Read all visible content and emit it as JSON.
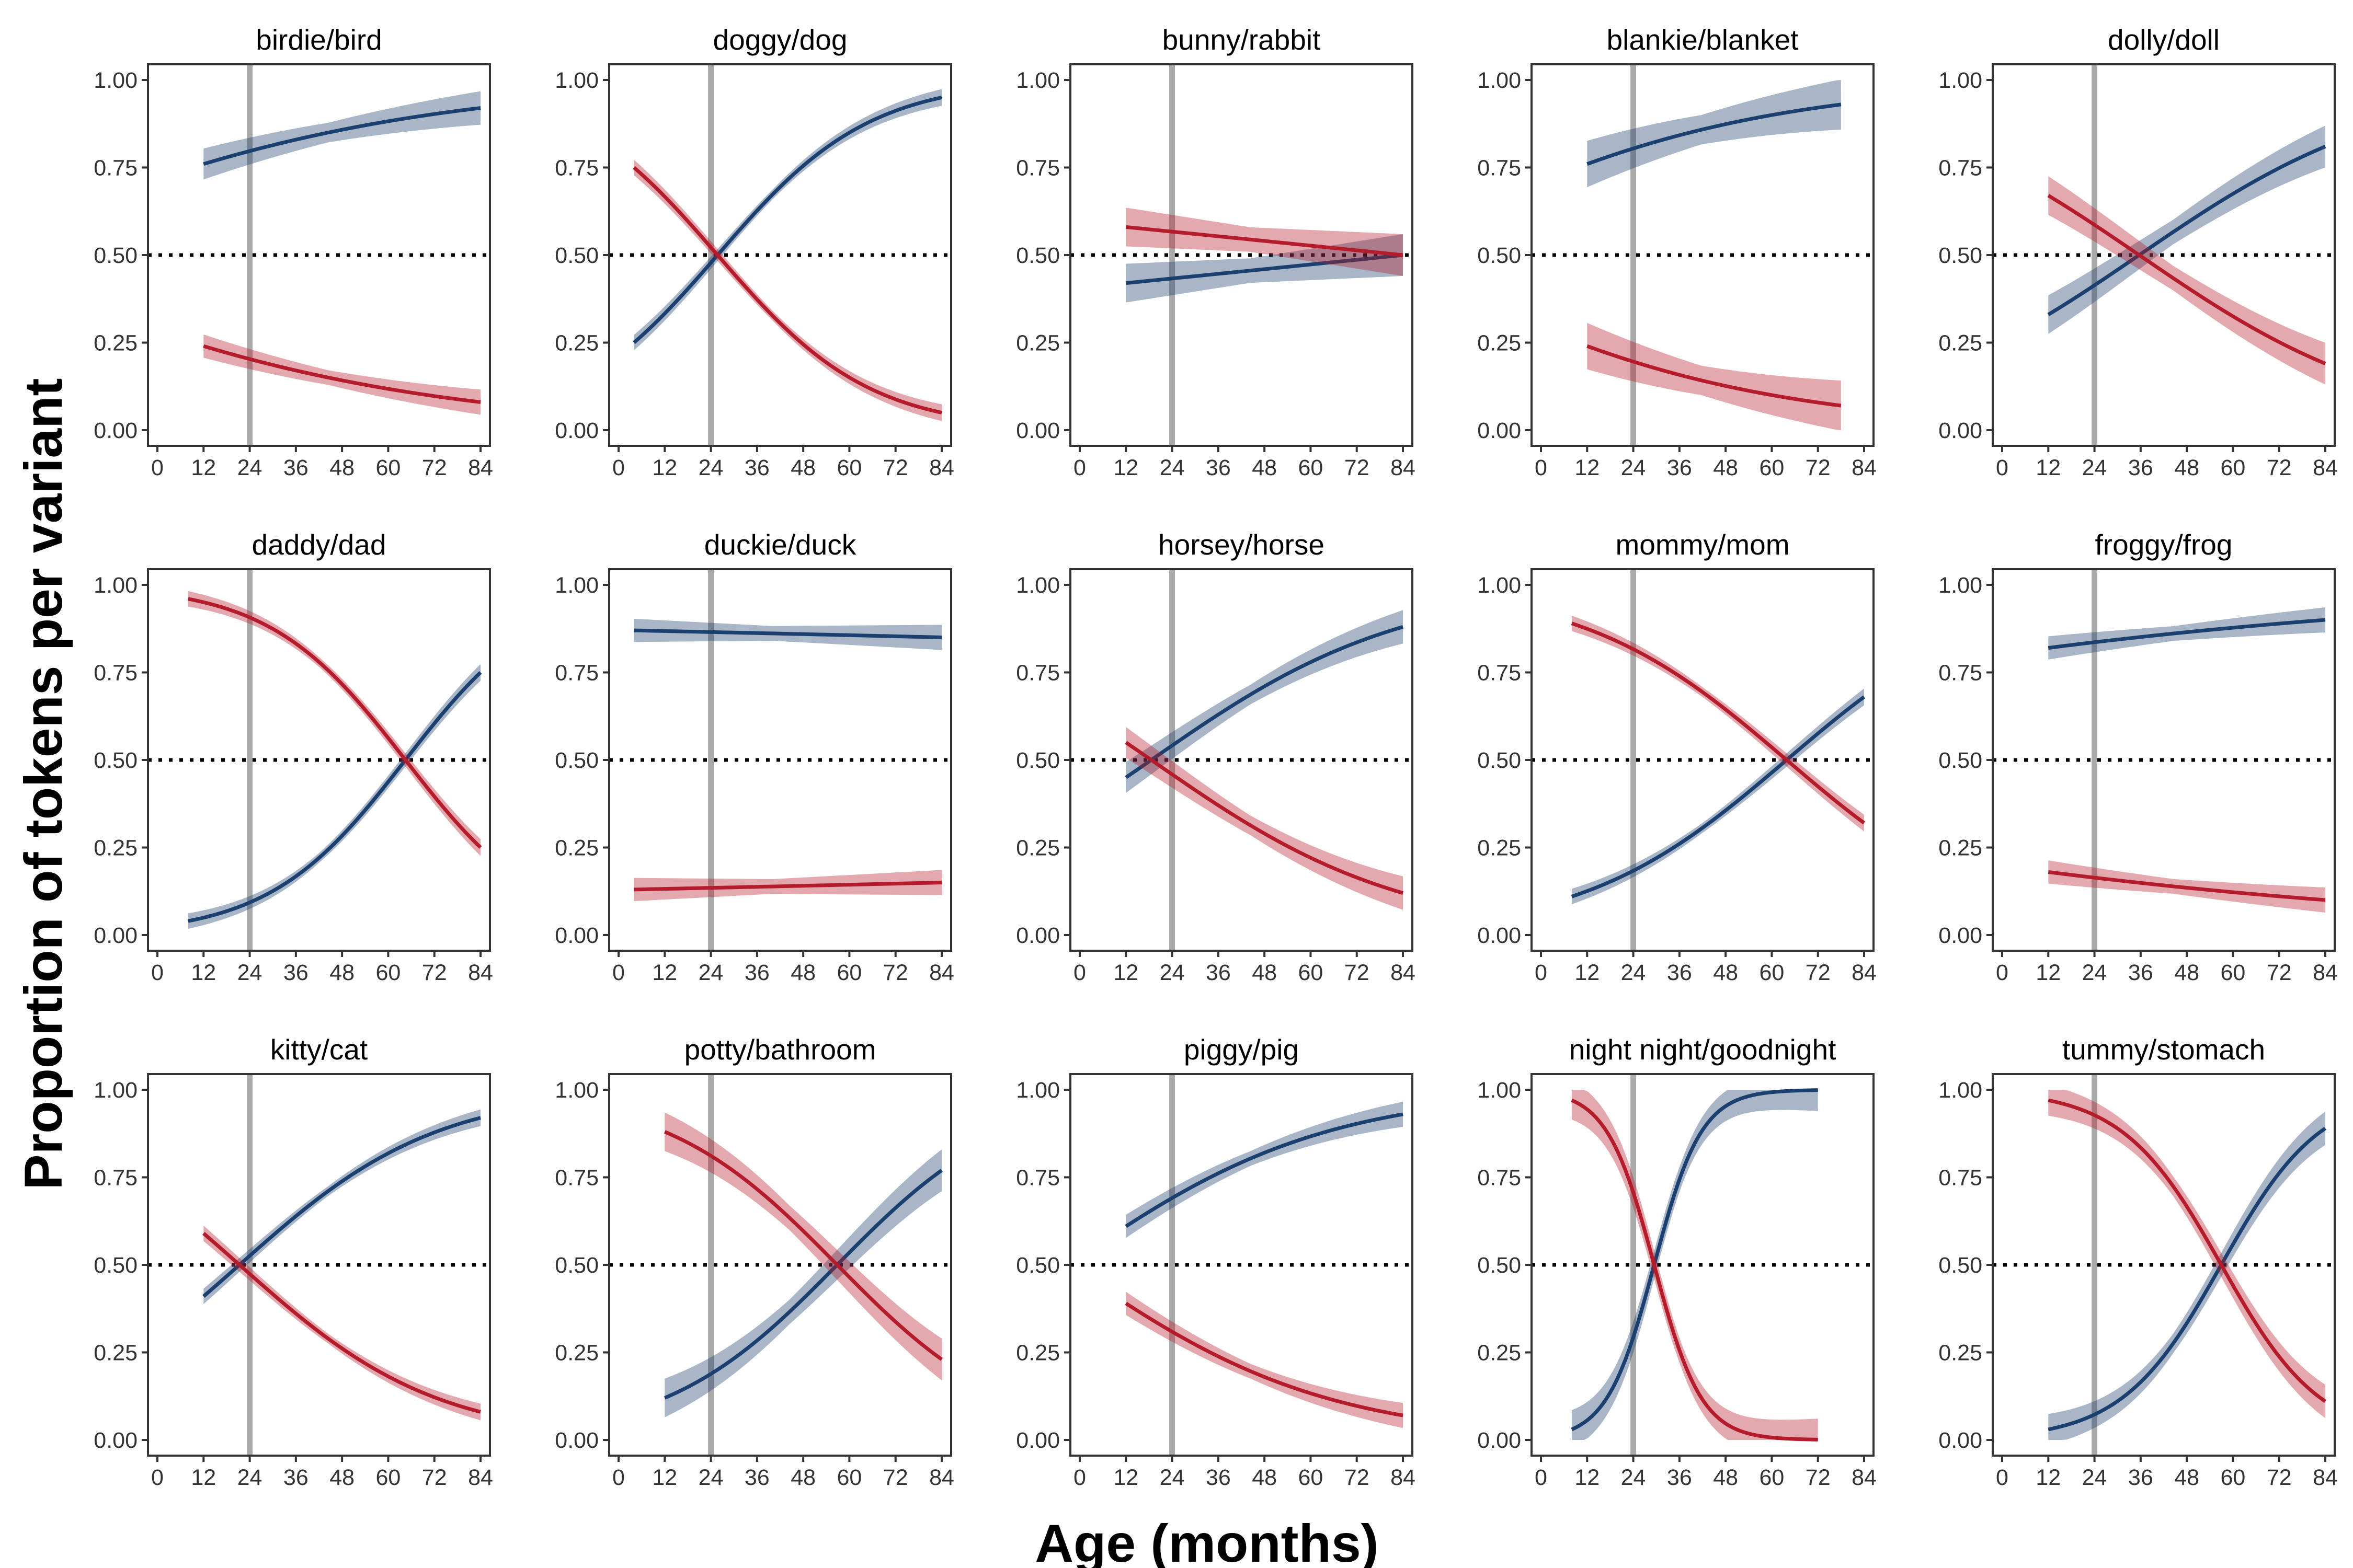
{
  "figure": {
    "ylabel": "Proportion of tokens per variant",
    "xlabel": "Age (months)"
  },
  "colors": {
    "cds_variant": "#b51c2b",
    "ads_variant": "#1b3f6e",
    "ref_line": "#aaaaaa"
  },
  "axis": {
    "x_ticks": [
      "0",
      "12",
      "24",
      "36",
      "48",
      "60",
      "72",
      "84"
    ],
    "y_ticks": [
      "0.00",
      "0.25",
      "0.50",
      "0.75",
      "1.00"
    ]
  },
  "chart_data": [
    {
      "type": "scatter",
      "title": "birdie/bird",
      "xlim": [
        0,
        84
      ],
      "ylim": [
        0,
        1
      ],
      "reference_x": 24,
      "reference_y": 0.5,
      "series": [
        {
          "color": "#1b3f6e",
          "fit_x": [
            12,
            84
          ],
          "fit_y": [
            0.76,
            0.92
          ],
          "band": 0.04
        },
        {
          "color": "#b51c2b",
          "fit_x": [
            12,
            84
          ],
          "fit_y": [
            0.24,
            0.08
          ],
          "band": 0.03
        }
      ]
    },
    {
      "type": "scatter",
      "title": "doggy/dog",
      "xlim": [
        0,
        84
      ],
      "ylim": [
        0,
        1
      ],
      "reference_x": 24,
      "reference_y": 0.5,
      "series": [
        {
          "color": "#1b3f6e",
          "fit_x": [
            4,
            84
          ],
          "fit_y": [
            0.25,
            0.95
          ],
          "band": 0.02
        },
        {
          "color": "#b51c2b",
          "fit_x": [
            4,
            84
          ],
          "fit_y": [
            0.75,
            0.05
          ],
          "band": 0.02
        }
      ]
    },
    {
      "type": "scatter",
      "title": "bunny/rabbit",
      "xlim": [
        0,
        84
      ],
      "ylim": [
        0,
        1
      ],
      "reference_x": 24,
      "reference_y": 0.5,
      "series": [
        {
          "color": "#1b3f6e",
          "fit_x": [
            12,
            84
          ],
          "fit_y": [
            0.42,
            0.5
          ],
          "band": 0.05
        },
        {
          "color": "#b51c2b",
          "fit_x": [
            12,
            84
          ],
          "fit_y": [
            0.58,
            0.5
          ],
          "band": 0.05
        }
      ]
    },
    {
      "type": "scatter",
      "title": "blankie/blanket",
      "xlim": [
        0,
        84
      ],
      "ylim": [
        0,
        1
      ],
      "reference_x": 24,
      "reference_y": 0.5,
      "series": [
        {
          "color": "#1b3f6e",
          "fit_x": [
            12,
            78
          ],
          "fit_y": [
            0.76,
            0.93
          ],
          "band": 0.06
        },
        {
          "color": "#b51c2b",
          "fit_x": [
            12,
            78
          ],
          "fit_y": [
            0.24,
            0.07
          ],
          "band": 0.06
        }
      ]
    },
    {
      "type": "scatter",
      "title": "dolly/doll",
      "xlim": [
        0,
        84
      ],
      "ylim": [
        0,
        1
      ],
      "reference_x": 24,
      "reference_y": 0.5,
      "series": [
        {
          "color": "#1b3f6e",
          "fit_x": [
            12,
            84
          ],
          "fit_y": [
            0.33,
            0.81
          ],
          "band": 0.05
        },
        {
          "color": "#b51c2b",
          "fit_x": [
            12,
            84
          ],
          "fit_y": [
            0.67,
            0.19
          ],
          "band": 0.05
        }
      ]
    },
    {
      "type": "scatter",
      "title": "daddy/dad",
      "xlim": [
        0,
        84
      ],
      "ylim": [
        0,
        1
      ],
      "reference_x": 24,
      "reference_y": 0.5,
      "series": [
        {
          "color": "#1b3f6e",
          "fit_x": [
            8,
            84
          ],
          "fit_y": [
            0.04,
            0.75
          ],
          "band": 0.02
        },
        {
          "color": "#b51c2b",
          "fit_x": [
            8,
            84
          ],
          "fit_y": [
            0.96,
            0.25
          ],
          "band": 0.02
        }
      ]
    },
    {
      "type": "scatter",
      "title": "duckie/duck",
      "xlim": [
        0,
        84
      ],
      "ylim": [
        0,
        1
      ],
      "reference_x": 24,
      "reference_y": 0.5,
      "series": [
        {
          "color": "#1b3f6e",
          "fit_x": [
            4,
            84
          ],
          "fit_y": [
            0.87,
            0.85
          ],
          "band": 0.03
        },
        {
          "color": "#b51c2b",
          "fit_x": [
            4,
            84
          ],
          "fit_y": [
            0.13,
            0.15
          ],
          "band": 0.03
        }
      ]
    },
    {
      "type": "scatter",
      "title": "horsey/horse",
      "xlim": [
        0,
        84
      ],
      "ylim": [
        0,
        1
      ],
      "reference_x": 24,
      "reference_y": 0.5,
      "series": [
        {
          "color": "#1b3f6e",
          "fit_x": [
            12,
            84
          ],
          "fit_y": [
            0.45,
            0.88
          ],
          "band": 0.04
        },
        {
          "color": "#b51c2b",
          "fit_x": [
            12,
            84
          ],
          "fit_y": [
            0.55,
            0.12
          ],
          "band": 0.04
        }
      ]
    },
    {
      "type": "scatter",
      "title": "mommy/mom",
      "xlim": [
        0,
        84
      ],
      "ylim": [
        0,
        1
      ],
      "reference_x": 24,
      "reference_y": 0.5,
      "series": [
        {
          "color": "#1b3f6e",
          "fit_x": [
            8,
            84
          ],
          "fit_y": [
            0.11,
            0.68
          ],
          "band": 0.02
        },
        {
          "color": "#b51c2b",
          "fit_x": [
            8,
            84
          ],
          "fit_y": [
            0.89,
            0.32
          ],
          "band": 0.02
        }
      ]
    },
    {
      "type": "scatter",
      "title": "froggy/frog",
      "xlim": [
        0,
        84
      ],
      "ylim": [
        0,
        1
      ],
      "reference_x": 24,
      "reference_y": 0.5,
      "series": [
        {
          "color": "#1b3f6e",
          "fit_x": [
            12,
            84
          ],
          "fit_y": [
            0.82,
            0.9
          ],
          "band": 0.03
        },
        {
          "color": "#b51c2b",
          "fit_x": [
            12,
            84
          ],
          "fit_y": [
            0.18,
            0.1
          ],
          "band": 0.03
        }
      ]
    },
    {
      "type": "scatter",
      "title": "kitty/cat",
      "xlim": [
        0,
        84
      ],
      "ylim": [
        0,
        1
      ],
      "reference_x": 24,
      "reference_y": 0.5,
      "series": [
        {
          "color": "#1b3f6e",
          "fit_x": [
            12,
            84
          ],
          "fit_y": [
            0.41,
            0.92
          ],
          "band": 0.02
        },
        {
          "color": "#b51c2b",
          "fit_x": [
            12,
            84
          ],
          "fit_y": [
            0.59,
            0.08
          ],
          "band": 0.02
        }
      ]
    },
    {
      "type": "scatter",
      "title": "potty/bathroom",
      "xlim": [
        0,
        84
      ],
      "ylim": [
        0,
        1
      ],
      "reference_x": 24,
      "reference_y": 0.5,
      "series": [
        {
          "color": "#1b3f6e",
          "fit_x": [
            12,
            84
          ],
          "fit_y": [
            0.12,
            0.77
          ],
          "band": 0.05
        },
        {
          "color": "#b51c2b",
          "fit_x": [
            12,
            84
          ],
          "fit_y": [
            0.88,
            0.23
          ],
          "band": 0.05
        }
      ]
    },
    {
      "type": "scatter",
      "title": "piggy/pig",
      "xlim": [
        0,
        84
      ],
      "ylim": [
        0,
        1
      ],
      "reference_x": 24,
      "reference_y": 0.5,
      "series": [
        {
          "color": "#1b3f6e",
          "fit_x": [
            12,
            84
          ],
          "fit_y": [
            0.61,
            0.93
          ],
          "band": 0.03
        },
        {
          "color": "#b51c2b",
          "fit_x": [
            12,
            84
          ],
          "fit_y": [
            0.39,
            0.07
          ],
          "band": 0.03
        }
      ]
    },
    {
      "type": "scatter",
      "title": "night night/goodnight",
      "xlim": [
        0,
        84
      ],
      "ylim": [
        0,
        1
      ],
      "reference_x": 24,
      "reference_y": 0.5,
      "series": [
        {
          "color": "#1b3f6e",
          "fit_x": [
            8,
            72
          ],
          "fit_y": [
            0.03,
            1.0
          ],
          "band": 0.05
        },
        {
          "color": "#b51c2b",
          "fit_x": [
            8,
            72
          ],
          "fit_y": [
            0.97,
            0.0
          ],
          "band": 0.05
        }
      ]
    },
    {
      "type": "scatter",
      "title": "tummy/stomach",
      "xlim": [
        0,
        84
      ],
      "ylim": [
        0,
        1
      ],
      "reference_x": 24,
      "reference_y": 0.5,
      "series": [
        {
          "color": "#1b3f6e",
          "fit_x": [
            12,
            84
          ],
          "fit_y": [
            0.03,
            0.89
          ],
          "band": 0.04
        },
        {
          "color": "#b51c2b",
          "fit_x": [
            12,
            84
          ],
          "fit_y": [
            0.97,
            0.11
          ],
          "band": 0.04
        }
      ]
    }
  ]
}
